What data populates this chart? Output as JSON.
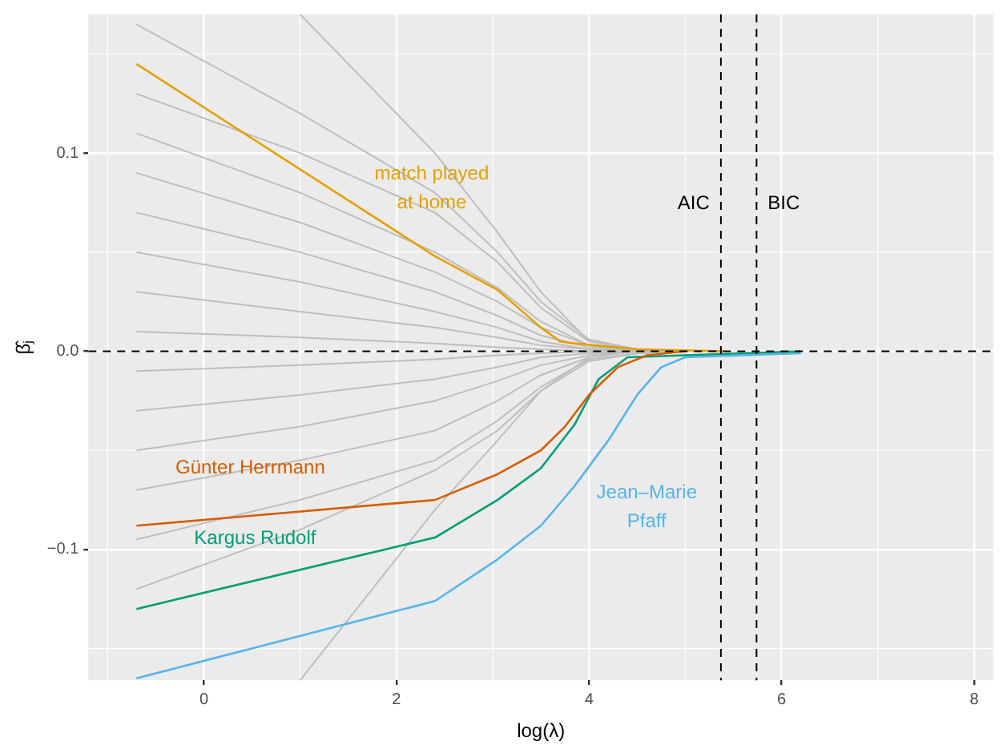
{
  "chart_data": {
    "type": "line",
    "xlabel": "log(λ)",
    "ylabel": "β̂ⱼ",
    "xlim": [
      -1.2,
      8.2
    ],
    "ylim": [
      -0.166,
      0.17
    ],
    "xticks": [
      0,
      2,
      4,
      6,
      8
    ],
    "yticks": [
      {
        "value": -0.1,
        "label": "−0.1"
      },
      {
        "value": 0,
        "label": "0.0"
      },
      0.1
    ],
    "grid": true,
    "legend": false,
    "marker": "none",
    "line_style": "solid",
    "ref_lines": [
      {
        "axis": "y",
        "value": 0,
        "color": "#000000",
        "line_style": "dashed"
      },
      {
        "axis": "x",
        "value": 5.37,
        "label": "AIC",
        "color": "#000000",
        "line_style": "dashed"
      },
      {
        "axis": "x",
        "value": 5.74,
        "label": "BIC",
        "color": "#000000",
        "line_style": "dashed"
      }
    ],
    "series": [
      {
        "color": "#bebebe",
        "x": [
          -0.7,
          1.0,
          2.4,
          3.05,
          3.5,
          4.0,
          4.5,
          5.0
        ],
        "values": [
          0.165,
          0.12,
          0.08,
          0.05,
          0.025,
          0.006,
          0.001,
          0
        ]
      },
      {
        "color": "#bebebe",
        "x": [
          -0.7,
          1.0,
          2.4,
          3.05,
          3.5,
          4.0,
          4.5,
          5.0
        ],
        "values": [
          0.13,
          0.1,
          0.07,
          0.045,
          0.022,
          0.005,
          0.001,
          0
        ]
      },
      {
        "color": "#bebebe",
        "x": [
          -0.7,
          1.0,
          2.4,
          3.05,
          3.5,
          4.0,
          4.5,
          5.0
        ],
        "values": [
          0.11,
          0.08,
          0.05,
          0.032,
          0.015,
          0.003,
          0.001,
          0
        ]
      },
      {
        "color": "#bebebe",
        "x": [
          -0.7,
          1.0,
          2.4,
          3.05,
          3.5,
          4.0,
          4.5,
          5.0
        ],
        "values": [
          0.09,
          0.065,
          0.04,
          0.025,
          0.012,
          0.003,
          0,
          0
        ]
      },
      {
        "color": "#bebebe",
        "x": [
          -0.7,
          1.0,
          2.4,
          3.05,
          3.5,
          4.0,
          4.5,
          5.0
        ],
        "values": [
          0.07,
          0.05,
          0.03,
          0.018,
          0.008,
          0.002,
          0,
          0
        ]
      },
      {
        "color": "#bebebe",
        "x": [
          -0.7,
          1.0,
          2.4,
          3.05,
          3.5,
          4.0,
          4.5,
          5.0
        ],
        "values": [
          0.05,
          0.035,
          0.02,
          0.012,
          0.005,
          0.001,
          0,
          0
        ]
      },
      {
        "color": "#bebebe",
        "x": [
          -0.7,
          1.0,
          2.4,
          3.05,
          3.5,
          4.0,
          4.5,
          5.0
        ],
        "values": [
          0.03,
          0.02,
          0.012,
          0.007,
          0.003,
          0.001,
          0,
          0
        ]
      },
      {
        "color": "#bebebe",
        "x": [
          -0.7,
          1.0,
          2.4,
          3.05,
          3.5,
          4.0,
          4.5,
          5.0
        ],
        "values": [
          0.01,
          0.007,
          0.004,
          0.002,
          0.001,
          0,
          0,
          0
        ]
      },
      {
        "color": "#bebebe",
        "x": [
          -0.7,
          1.0,
          2.4,
          3.05,
          3.5,
          4.0,
          4.5,
          5.0
        ],
        "values": [
          -0.01,
          -0.007,
          -0.004,
          -0.002,
          -0.001,
          0,
          0,
          0
        ]
      },
      {
        "color": "#bebebe",
        "x": [
          -0.7,
          1.0,
          2.4,
          3.05,
          3.5,
          4.0,
          4.5,
          5.0
        ],
        "values": [
          -0.03,
          -0.022,
          -0.014,
          -0.008,
          -0.003,
          -0.001,
          0,
          0
        ]
      },
      {
        "color": "#bebebe",
        "x": [
          -0.7,
          1.0,
          2.4,
          3.05,
          3.5,
          4.0,
          4.5,
          5.0
        ],
        "values": [
          -0.05,
          -0.038,
          -0.025,
          -0.015,
          -0.007,
          -0.002,
          0,
          0
        ]
      },
      {
        "color": "#bebebe",
        "x": [
          -0.7,
          1.0,
          2.4,
          3.05,
          3.5,
          4.0,
          4.5,
          5.0
        ],
        "values": [
          -0.07,
          -0.055,
          -0.04,
          -0.025,
          -0.012,
          -0.003,
          0,
          0
        ]
      },
      {
        "color": "#bebebe",
        "x": [
          -0.7,
          1.0,
          2.4,
          3.05,
          3.5,
          4.0,
          4.5,
          5.0
        ],
        "values": [
          -0.095,
          -0.075,
          -0.055,
          -0.035,
          -0.018,
          -0.004,
          -0.001,
          0
        ]
      },
      {
        "color": "#bebebe",
        "x": [
          -0.7,
          1.0,
          2.4,
          3.05,
          3.5,
          4.0,
          4.5,
          5.0
        ],
        "values": [
          -0.12,
          -0.09,
          -0.06,
          -0.04,
          -0.02,
          -0.005,
          -0.001,
          0
        ]
      },
      {
        "color": "#bebebe",
        "x": [
          1.0,
          2.4,
          3.05,
          3.5,
          4.0
        ],
        "values": [
          -0.166,
          -0.08,
          -0.045,
          -0.02,
          -0.003
        ]
      },
      {
        "color": "#bebebe",
        "x": [
          1.0,
          2.4,
          3.05,
          3.5,
          4.0
        ],
        "values": [
          0.17,
          0.1,
          0.06,
          0.03,
          0.005
        ]
      },
      {
        "name": "match played at home",
        "color": "#e69f00",
        "x": [
          -0.7,
          2.4,
          3.05,
          3.5,
          3.7,
          3.85,
          4.5,
          5.4
        ],
        "values": [
          0.145,
          0.048,
          0.031,
          0.012,
          0.005,
          0.004,
          0.001,
          0
        ]
      },
      {
        "name": "Günter Herrmann",
        "color": "#d55e00",
        "x": [
          -0.7,
          2.4,
          3.05,
          3.5,
          3.75,
          4.0,
          4.3,
          4.6,
          5.0
        ],
        "values": [
          -0.088,
          -0.075,
          -0.062,
          -0.05,
          -0.038,
          -0.022,
          -0.008,
          -0.002,
          0
        ]
      },
      {
        "name": "Kargus Rudolf",
        "color": "#009e73",
        "x": [
          -0.7,
          2.4,
          3.05,
          3.5,
          3.85,
          4.1,
          4.4,
          6.2
        ],
        "values": [
          -0.13,
          -0.094,
          -0.075,
          -0.059,
          -0.037,
          -0.014,
          -0.003,
          0
        ]
      },
      {
        "name": "Jean–Marie Pfaff",
        "color": "#56b4e9",
        "x": [
          -0.7,
          2.4,
          3.05,
          3.5,
          3.85,
          4.2,
          4.5,
          4.75,
          5.0,
          6.2
        ],
        "values": [
          -0.165,
          -0.126,
          -0.105,
          -0.088,
          -0.068,
          -0.045,
          -0.022,
          -0.008,
          -0.003,
          -0.001
        ]
      }
    ]
  }
}
